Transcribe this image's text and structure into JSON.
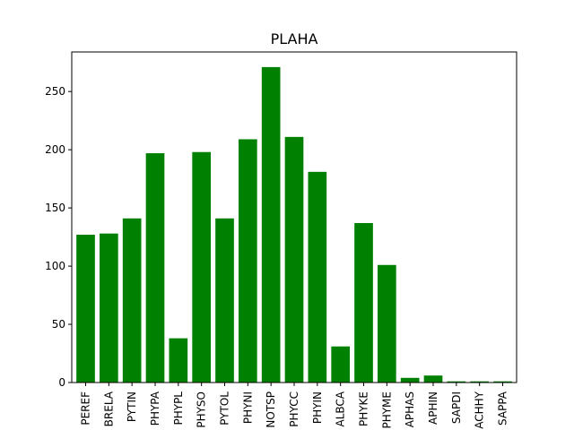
{
  "chart_data": {
    "type": "bar",
    "title": "PLAHA",
    "xlabel": "",
    "ylabel": "",
    "categories": [
      "PEREF",
      "BRELA",
      "PYTIN",
      "PHYPA",
      "PHYPL",
      "PHYSO",
      "PYTOL",
      "PHYNI",
      "NOTSP",
      "PHYCC",
      "PHYIN",
      "ALBCA",
      "PHYKE",
      "PHYME",
      "APHAS",
      "APHIN",
      "SAPDI",
      "ACHHY",
      "SAPPA"
    ],
    "values": [
      127,
      128,
      141,
      197,
      38,
      198,
      141,
      209,
      271,
      211,
      181,
      31,
      137,
      101,
      4,
      6,
      1,
      1,
      1
    ],
    "ylim": [
      0,
      284
    ],
    "yticks": [
      0,
      50,
      100,
      150,
      200,
      250
    ],
    "bar_color": "#008000",
    "grid": false,
    "legend": "none"
  }
}
